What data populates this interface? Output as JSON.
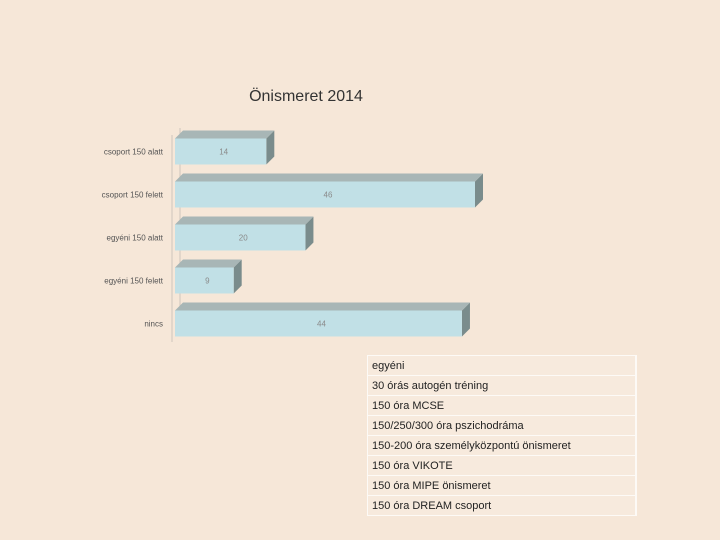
{
  "chart_data": {
    "type": "bar",
    "orientation": "horizontal",
    "title": "Önismeret 2014",
    "categories": [
      "csoport 150 alatt",
      "csoport 150 felett",
      "egyéni 150 alatt",
      "egyéni 150 felett",
      "nincs"
    ],
    "values": [
      14,
      46,
      20,
      9,
      44
    ],
    "xlabel": "",
    "ylabel": "",
    "xlim": [
      0,
      46
    ],
    "grid": false,
    "style": "3d",
    "colors": {
      "bar_face": "#c1e0e6",
      "bar_side": "#7a8c8c",
      "bar_top": "#a8b6b6"
    }
  },
  "notes_table": {
    "rows": [
      "egyéni",
      "30 órás autogén tréning",
      "150 óra MCSE",
      "150/250/300 óra pszichodráma",
      "150-200 óra személyközpontú önismeret",
      "150 óra VIKOTE",
      "150 óra MIPE önismeret",
      "150 óra DREAM csoport"
    ]
  }
}
